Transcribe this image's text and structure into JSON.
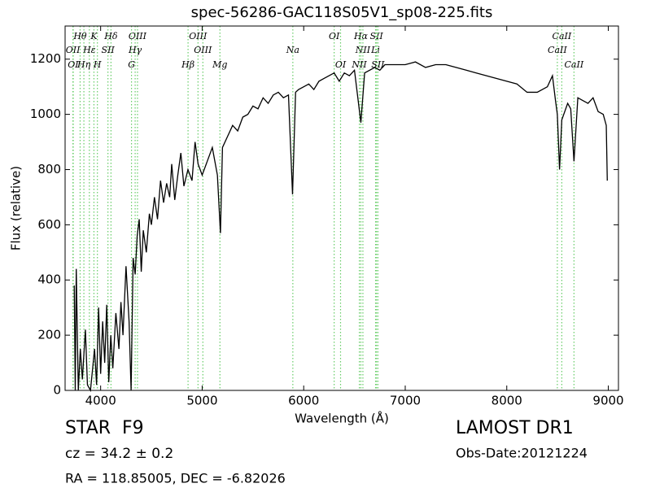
{
  "chart_data": {
    "type": "line",
    "title": "spec-56286-GAC118S05V1_sp08-225.fits",
    "x_label": "Wavelength (Å)",
    "y_label": "Flux (relative)",
    "xlim": [
      3650,
      9100
    ],
    "ylim": [
      0,
      1320
    ],
    "xticks": [
      4000,
      5000,
      6000,
      7000,
      8000,
      9000
    ],
    "yticks": [
      0,
      200,
      400,
      600,
      800,
      1000,
      1200
    ],
    "color": "#000000",
    "line_color": "#66cc66",
    "x": [
      3740,
      3750,
      3760,
      3780,
      3800,
      3820,
      3850,
      3870,
      3900,
      3940,
      3960,
      3980,
      4000,
      4020,
      4040,
      4060,
      4080,
      4100,
      4120,
      4150,
      4180,
      4200,
      4220,
      4250,
      4280,
      4300,
      4320,
      4340,
      4360,
      4380,
      4400,
      4420,
      4450,
      4480,
      4500,
      4530,
      4560,
      4590,
      4620,
      4650,
      4680,
      4700,
      4730,
      4760,
      4790,
      4820,
      4860,
      4900,
      4930,
      4960,
      5000,
      5050,
      5100,
      5150,
      5180,
      5200,
      5250,
      5300,
      5350,
      5400,
      5450,
      5500,
      5550,
      5600,
      5650,
      5700,
      5750,
      5800,
      5850,
      5890,
      5920,
      5950,
      6000,
      6050,
      6100,
      6150,
      6200,
      6250,
      6300,
      6350,
      6400,
      6450,
      6500,
      6563,
      6600,
      6650,
      6700,
      6750,
      6800,
      6900,
      7000,
      7100,
      7200,
      7300,
      7400,
      7500,
      7600,
      7700,
      7800,
      7900,
      8000,
      8100,
      8200,
      8300,
      8400,
      8450,
      8480,
      8498,
      8520,
      8542,
      8600,
      8630,
      8662,
      8700,
      8750,
      8800,
      8850,
      8900,
      8950,
      8980,
      8990
    ],
    "values": [
      380,
      0,
      440,
      0,
      150,
      40,
      220,
      20,
      0,
      150,
      20,
      300,
      60,
      250,
      100,
      310,
      30,
      200,
      80,
      280,
      150,
      320,
      200,
      450,
      250,
      0,
      480,
      420,
      560,
      620,
      430,
      580,
      500,
      640,
      600,
      700,
      620,
      760,
      680,
      750,
      700,
      820,
      690,
      780,
      860,
      740,
      800,
      760,
      900,
      820,
      780,
      830,
      880,
      780,
      570,
      880,
      920,
      960,
      940,
      990,
      1000,
      1030,
      1020,
      1060,
      1040,
      1070,
      1080,
      1060,
      1070,
      710,
      1080,
      1090,
      1100,
      1110,
      1090,
      1120,
      1130,
      1140,
      1150,
      1120,
      1150,
      1140,
      1160,
      970,
      1150,
      1160,
      1170,
      1160,
      1180,
      1180,
      1180,
      1190,
      1170,
      1180,
      1180,
      1170,
      1160,
      1150,
      1140,
      1130,
      1120,
      1110,
      1080,
      1080,
      1100,
      1140,
      1050,
      1000,
      800,
      980,
      1040,
      1020,
      830,
      1060,
      1050,
      1040,
      1060,
      1010,
      1000,
      960,
      760
    ],
    "annotations": [
      {
        "label": "Hθ",
        "x": 3798
      },
      {
        "label": "K",
        "x": 3934
      },
      {
        "label": "Hδ",
        "x": 4102
      },
      {
        "label": "OIII",
        "x": 4363
      },
      {
        "label": "OIII",
        "x": 4959
      },
      {
        "label": "OI",
        "x": 6300
      },
      {
        "label": "Hα",
        "x": 6563
      },
      {
        "label": "SII",
        "x": 6717
      },
      {
        "label": "CaII",
        "x": 8542
      },
      {
        "label": "OII",
        "x": 3727
      },
      {
        "label": "Hε",
        "x": 3889
      },
      {
        "label": "SII",
        "x": 4072
      },
      {
        "label": "Hγ",
        "x": 4340
      },
      {
        "label": "OIII",
        "x": 5007
      },
      {
        "label": "Na",
        "x": 5893
      },
      {
        "label": "NII",
        "x": 6583
      },
      {
        "label": "Li",
        "x": 6708
      },
      {
        "label": "CaII",
        "x": 8498
      },
      {
        "label": "OI",
        "x": 3730
      },
      {
        "label": "Hη",
        "x": 3835
      },
      {
        "label": "H",
        "x": 3968
      },
      {
        "label": "G",
        "x": 4304
      },
      {
        "label": "Hβ",
        "x": 4861
      },
      {
        "label": "Mg",
        "x": 5175
      },
      {
        "label": "OI",
        "x": 6363
      },
      {
        "label": "NII",
        "x": 6548
      },
      {
        "label": "SII",
        "x": 6731
      },
      {
        "label": "CaII",
        "x": 8662
      }
    ]
  },
  "info": {
    "class": "STAR",
    "subclass": "F9",
    "survey": "LAMOST DR1",
    "redshift": "cz = 34.2  ± 0.2",
    "obs_date": "Obs-Date:20121224",
    "position": "RA = 118.85005, DEC = -6.82026"
  }
}
